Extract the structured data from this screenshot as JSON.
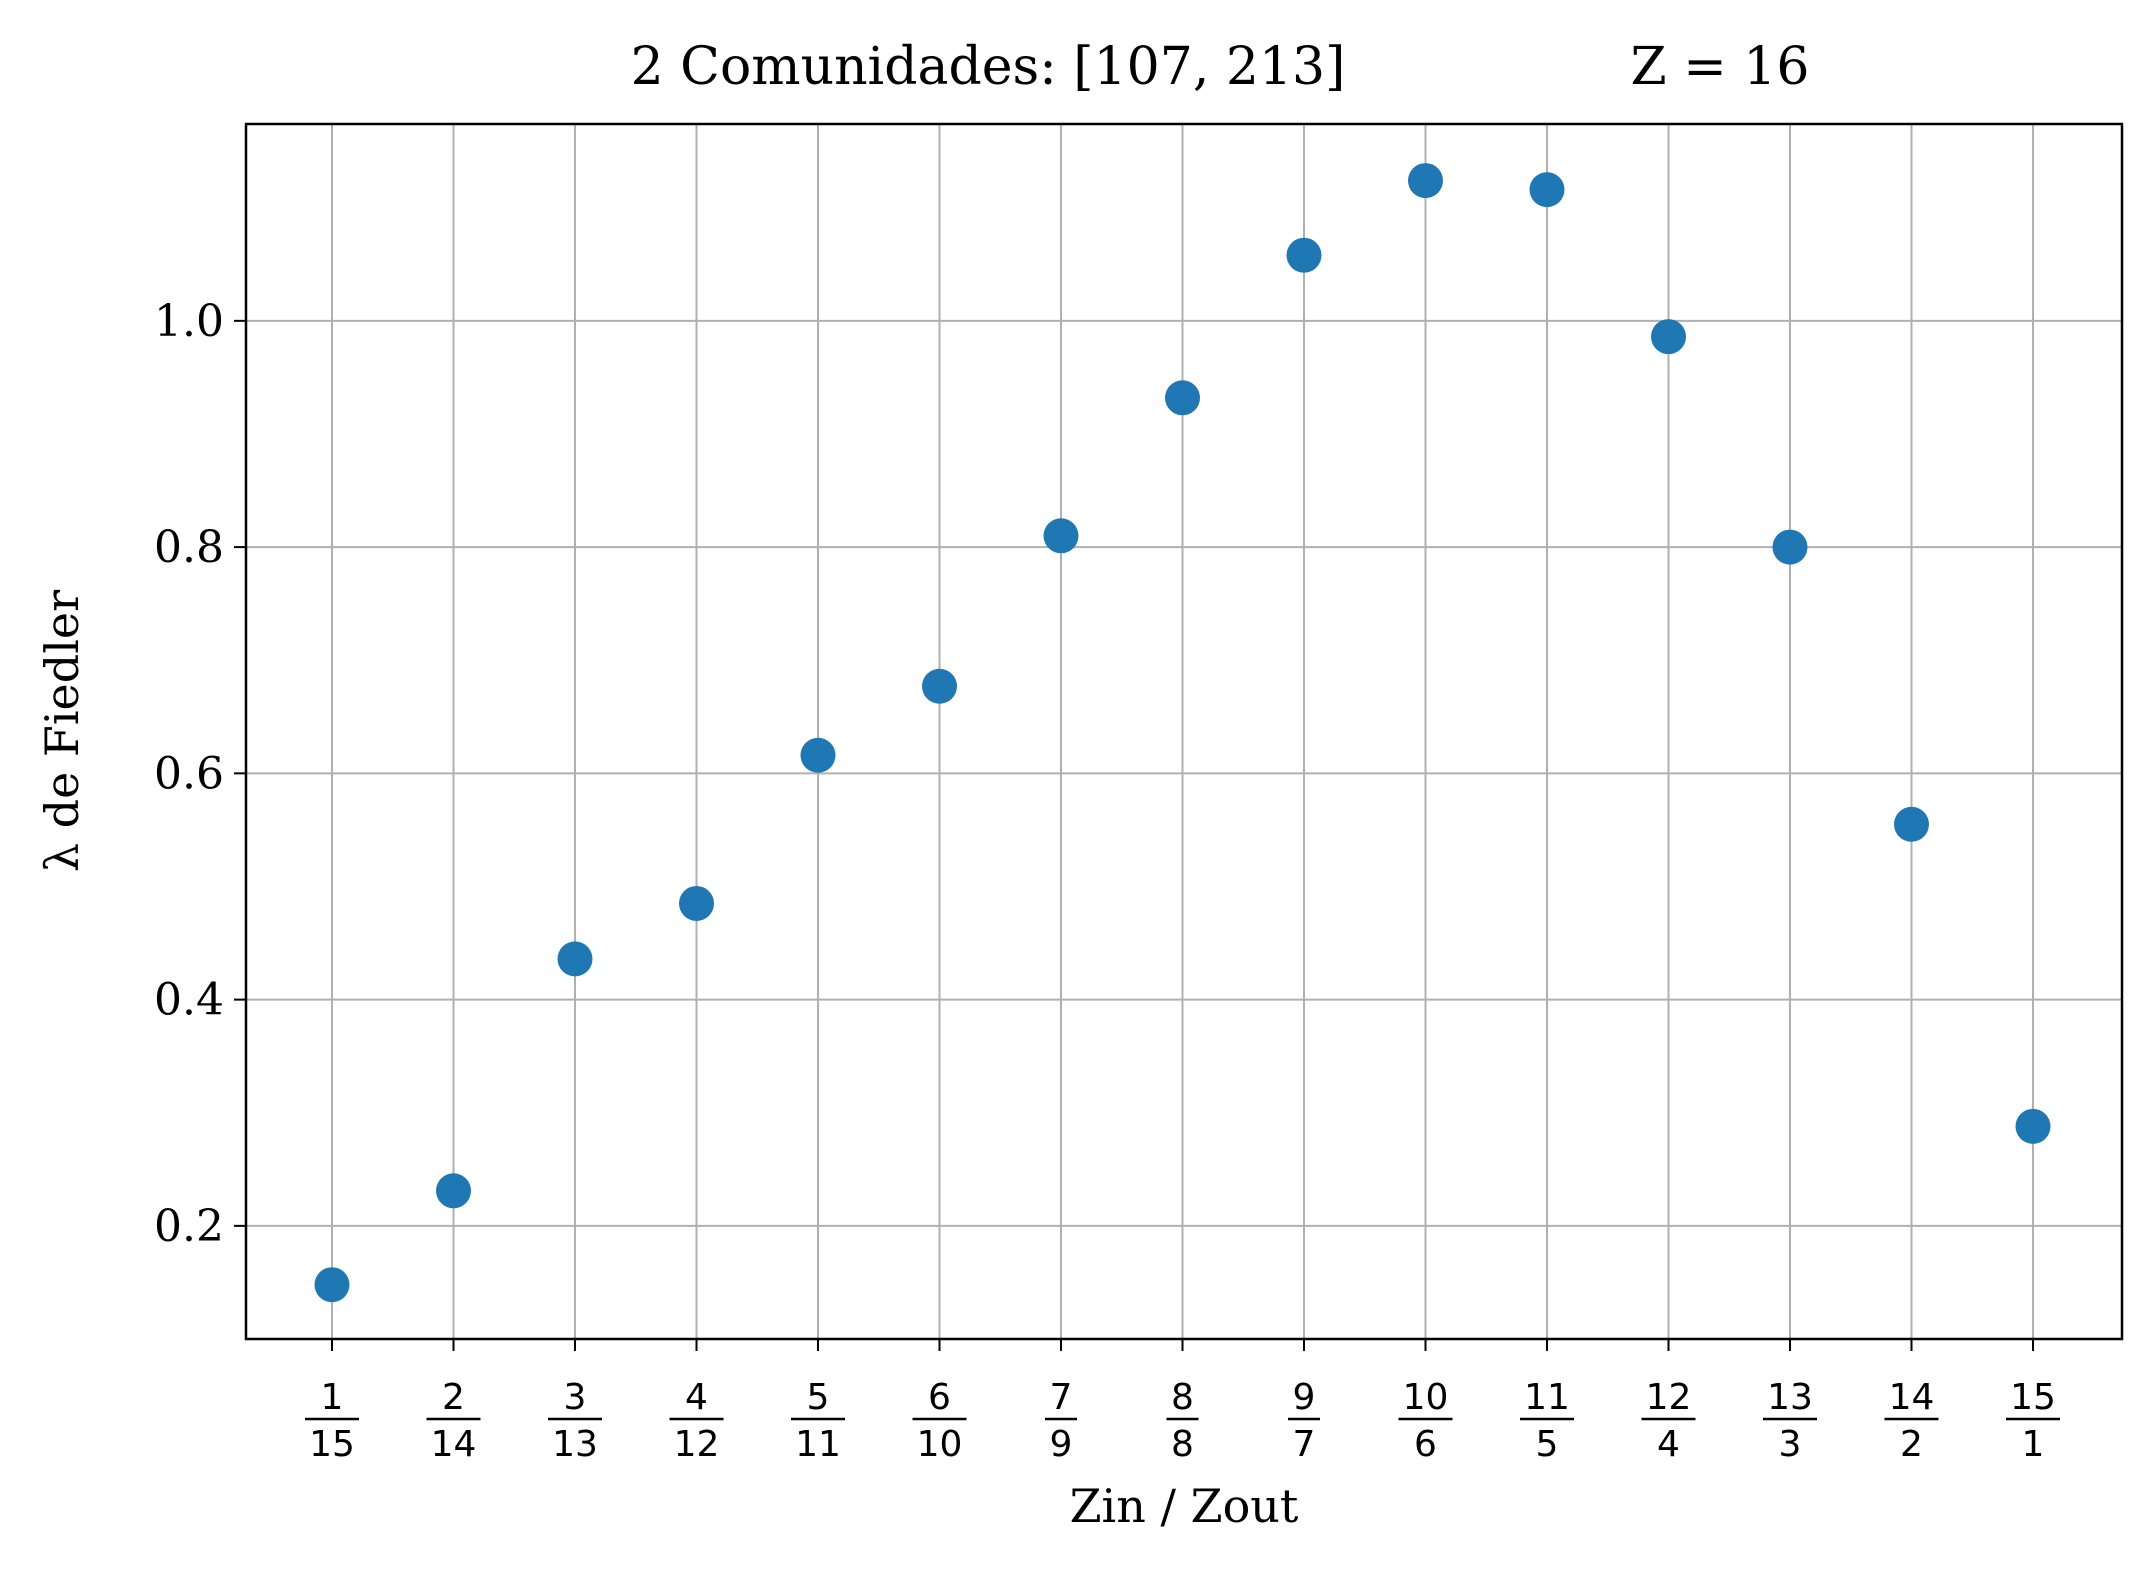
{
  "chart_data": {
    "type": "scatter",
    "title": "2 Comunidades: [107, 213]",
    "title_right": "Z = 16",
    "xlabel": "Zin / Zout",
    "ylabel": "λ de Fiedler",
    "categories": [
      {
        "num": "1",
        "den": "15"
      },
      {
        "num": "2",
        "den": "14"
      },
      {
        "num": "3",
        "den": "13"
      },
      {
        "num": "4",
        "den": "12"
      },
      {
        "num": "5",
        "den": "11"
      },
      {
        "num": "6",
        "den": "10"
      },
      {
        "num": "7",
        "den": "9"
      },
      {
        "num": "8",
        "den": "8"
      },
      {
        "num": "9",
        "den": "7"
      },
      {
        "num": "10",
        "den": "6"
      },
      {
        "num": "11",
        "den": "5"
      },
      {
        "num": "12",
        "den": "4"
      },
      {
        "num": "13",
        "den": "3"
      },
      {
        "num": "14",
        "den": "2"
      },
      {
        "num": "15",
        "den": "1"
      }
    ],
    "values": [
      0.148,
      0.231,
      0.436,
      0.485,
      0.616,
      0.677,
      0.81,
      0.932,
      1.058,
      1.124,
      1.116,
      0.986,
      0.8,
      0.555,
      0.288
    ],
    "yticks": [
      "0.2",
      "0.4",
      "0.6",
      "0.8",
      "1.0"
    ],
    "ylim": [
      0.1,
      1.174
    ],
    "grid": true,
    "marker_color": "#1f77b4",
    "grid_color": "#b0b0b0"
  }
}
